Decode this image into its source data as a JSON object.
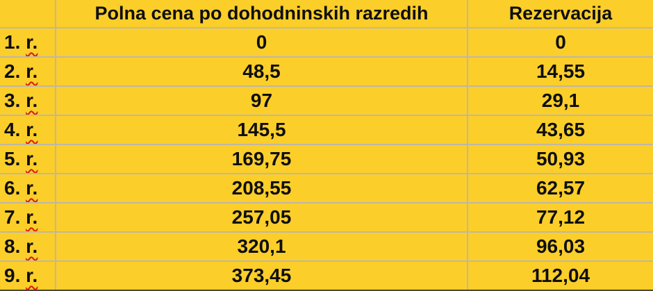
{
  "app": {
    "description_label": "spreadsheet price table"
  },
  "colors": {
    "background": "#fbce2a",
    "gridline": "#beb7a6",
    "text": "#0f0f0f",
    "spellcheck_underline": "#de1509",
    "bottom_edge": "#4c4636"
  },
  "table": {
    "columns": [
      {
        "label": ""
      },
      {
        "label": "Polna cena po dohodninskih razredih"
      },
      {
        "label": "Rezervacija"
      }
    ],
    "rows": [
      {
        "label_num": "1.",
        "label_word": "r.",
        "polna_cena": "0",
        "rezervacija": "0"
      },
      {
        "label_num": "2.",
        "label_word": "r.",
        "polna_cena": "48,5",
        "rezervacija": "14,55"
      },
      {
        "label_num": "3.",
        "label_word": "r.",
        "polna_cena": "97",
        "rezervacija": "29,1"
      },
      {
        "label_num": "4.",
        "label_word": "r.",
        "polna_cena": "145,5",
        "rezervacija": "43,65"
      },
      {
        "label_num": "5.",
        "label_word": "r.",
        "polna_cena": "169,75",
        "rezervacija": "50,93"
      },
      {
        "label_num": "6.",
        "label_word": "r.",
        "polna_cena": "208,55",
        "rezervacija": "62,57"
      },
      {
        "label_num": "7.",
        "label_word": "r.",
        "polna_cena": "257,05",
        "rezervacija": "77,12"
      },
      {
        "label_num": "8.",
        "label_word": "r.",
        "polna_cena": "320,1",
        "rezervacija": "96,03"
      },
      {
        "label_num": "9.",
        "label_word": "r.",
        "polna_cena": "373,45",
        "rezervacija": "112,04"
      }
    ]
  }
}
